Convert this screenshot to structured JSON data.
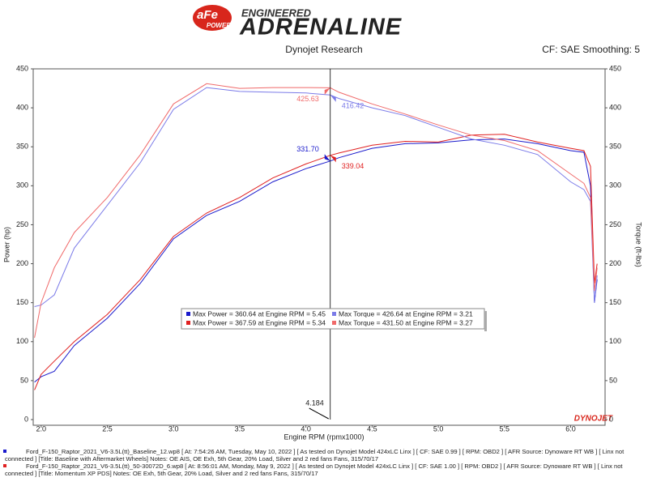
{
  "header": {
    "logo_main": "aFe",
    "logo_sub": "POWER",
    "tagline": "ENGINEERED",
    "brand": "ADRENALINE",
    "subtitle": "Dynojet Research",
    "settings": "CF: SAE Smoothing: 5"
  },
  "chart_data": {
    "type": "line",
    "xlabel": "Engine RPM (rpmx1000)",
    "ylabel": "Power (hp)",
    "y2label": "Torque (ft-lbs)",
    "watermark": "DYNOJET",
    "xlim": [
      1.94,
      6.26
    ],
    "xticks": [
      {
        "value": 2,
        "label": "2.0"
      },
      {
        "value": 2.5,
        "label": "2.5"
      },
      {
        "value": 3,
        "label": "3.0"
      },
      {
        "value": 3.5,
        "label": "3.5"
      },
      {
        "value": 4,
        "label": "4.0"
      },
      {
        "value": 4.5,
        "label": "4.5"
      },
      {
        "value": 5,
        "label": "5.0"
      },
      {
        "value": 5.5,
        "label": "5.5"
      },
      {
        "value": 6,
        "label": "6.0"
      }
    ],
    "ylim": [
      0,
      450
    ],
    "yticks": [
      0,
      50,
      100,
      150,
      200,
      250,
      300,
      350,
      400,
      450
    ],
    "y2lim": [
      0,
      450
    ],
    "y2ticks": [
      0,
      50,
      100,
      150,
      200,
      250,
      300,
      350,
      400,
      450
    ],
    "cursor": {
      "value": 4.184,
      "label": "4.184"
    },
    "x": [
      1.95,
      2.0,
      2.1,
      2.25,
      2.5,
      2.75,
      3.0,
      3.25,
      3.5,
      3.75,
      4.0,
      4.184,
      4.25,
      4.5,
      4.75,
      5.0,
      5.25,
      5.5,
      5.75,
      6.0,
      6.1,
      6.15,
      6.18,
      6.2
    ],
    "series": [
      {
        "name": "Max Power = 360.64 at Engine RPM = 5.45",
        "color": "#1a1acc",
        "values": [
          48,
          55,
          62,
          95,
          130,
          175,
          232,
          262,
          280,
          305,
          322,
          331.7,
          336,
          348,
          354,
          355,
          359,
          360,
          354,
          345,
          343,
          300,
          150,
          180
        ],
        "cursor_value": {
          "value": 331.7,
          "label": "331.70"
        }
      },
      {
        "name": "Max Power = 367.59 at Engine RPM = 5.34",
        "color": "#e02020",
        "values": [
          38,
          58,
          75,
          100,
          135,
          180,
          235,
          265,
          285,
          310,
          328,
          339.04,
          342,
          352,
          357,
          356,
          365,
          366,
          356,
          348,
          345,
          325,
          175,
          200
        ],
        "cursor_value": {
          "value": 339.04,
          "label": "339.04"
        }
      },
      {
        "name": "Max Torque = 426.64 at Engine RPM = 3.21",
        "color": "#7b7be8",
        "axis": "y2",
        "values": [
          145,
          147,
          160,
          220,
          275,
          330,
          398,
          426,
          421,
          420,
          419,
          416.42,
          412,
          400,
          390,
          375,
          360,
          352,
          340,
          305,
          295,
          280,
          150,
          185
        ],
        "cursor_value": {
          "value": 416.42,
          "label": "416.42"
        }
      },
      {
        "name": "Max Torque = 431.50 at Engine RPM = 3.27",
        "color": "#f06a6a",
        "axis": "y2",
        "values": [
          105,
          150,
          195,
          240,
          285,
          340,
          405,
          431,
          425,
          426,
          426,
          425.63,
          420,
          405,
          392,
          378,
          365,
          358,
          345,
          315,
          303,
          285,
          165,
          195
        ],
        "cursor_value": {
          "value": 425.63,
          "label": "425.63"
        }
      }
    ]
  },
  "footer": {
    "runs": [
      {
        "text": "Ford_F-150_Raptor_2021_V6-3.5L(tt)_Baseline_12.wp8 [ At: 7:54:26 AM, Tuesday, May 10, 2022 ] [ As tested on Dynojet Model 424xLC Linx ] [ CF: SAE 0.99 ] [ RPM: OBD2 ] [ AFR Source: Dynoware RT WB ] [ Linx not connected ] [Title: Baseline with Aftermarket Wheels]  Notes: OE AIS, OE Exh, 5th Gear, 20% Load, Silver and 2 red fans Fans, 315/70/17"
      },
      {
        "text": "Ford_F-150_Raptor_2021_V6-3.5L(tt)_50-30072D_6.wp8 [ At: 8:56:01 AM, Monday, May 9, 2022 ] [ As tested on Dynojet Model 424xLC Linx ] [ CF: SAE 1.00 ] [ RPM: OBD2 ] [ AFR Source: Dynoware RT WB ] [ Linx not connected ] [Title: Momentum XP PDS]  Notes: OE Exh, 5th Gear, 20% Load, Silver and 2 red fans Fans, 315/70/17"
      }
    ]
  }
}
